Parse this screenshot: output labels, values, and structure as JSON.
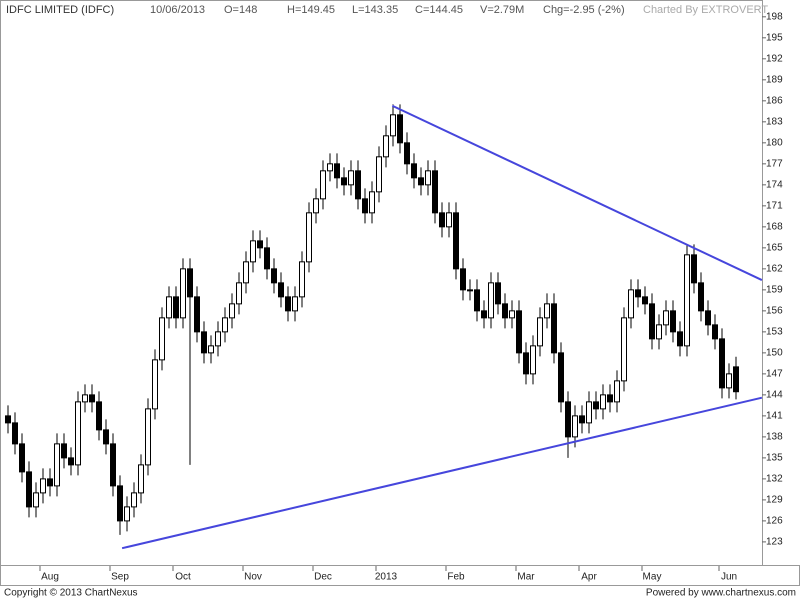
{
  "chart_data": {
    "type": "candlestick",
    "title": "IDFC LIMITED (IDFC)",
    "header": [
      "10/06/2013",
      "O=148",
      "H=149.45",
      "L=143.35",
      "C=144.45",
      "V=2.79M",
      "Chg=-2.95 (-2%)"
    ],
    "credit": "Charted By EXTROVERT",
    "footer_left": "Copyright © 2013 ChartNexus",
    "footer_right": "Powered by www.chartnexus.com",
    "categories": [
      null,
      null,
      null,
      null,
      null,
      "Aug",
      null,
      null,
      null,
      null,
      null,
      null,
      null,
      null,
      null,
      "Sep",
      null,
      null,
      null,
      null,
      null,
      null,
      null,
      null,
      "Oct",
      null,
      null,
      null,
      null,
      null,
      null,
      null,
      null,
      null,
      "Nov",
      null,
      null,
      null,
      null,
      null,
      null,
      null,
      null,
      null,
      "Dec",
      null,
      null,
      null,
      null,
      null,
      null,
      null,
      null,
      "2013",
      null,
      null,
      null,
      null,
      null,
      null,
      null,
      null,
      null,
      "Feb",
      null,
      null,
      null,
      null,
      null,
      null,
      null,
      null,
      null,
      "Mar",
      null,
      null,
      null,
      null,
      null,
      null,
      null,
      null,
      "Apr",
      null,
      null,
      null,
      null,
      null,
      null,
      null,
      null,
      "May",
      null,
      null,
      null,
      null,
      null,
      null,
      null,
      null,
      null,
      null,
      "Jun",
      null,
      null
    ],
    "open": [
      141,
      140,
      137,
      133,
      128,
      130,
      132,
      131,
      137,
      135,
      134,
      143,
      144,
      143,
      139,
      137,
      131,
      126,
      128,
      130,
      134,
      142,
      149,
      155,
      158,
      155,
      162,
      158,
      153,
      150,
      151,
      153,
      155,
      157,
      160,
      163,
      166,
      165,
      162,
      160,
      158,
      156,
      158,
      163,
      170,
      172,
      176,
      177,
      175,
      174,
      176,
      172,
      170,
      173,
      178,
      181,
      184,
      180,
      177,
      175,
      174,
      176,
      170,
      168,
      170,
      162,
      159,
      159,
      156,
      155,
      160,
      157,
      155,
      156,
      150,
      147,
      151,
      155,
      157,
      150,
      143,
      138,
      141,
      140,
      143,
      142,
      144,
      143,
      146,
      155,
      159,
      158,
      157,
      152,
      154,
      156,
      153,
      151,
      164,
      160,
      156,
      154,
      152,
      145,
      148
    ],
    "high": [
      142.5,
      141.5,
      138.5,
      134.5,
      131.5,
      133.5,
      133.5,
      138.5,
      138.5,
      136.5,
      144.5,
      145.5,
      145.5,
      144.5,
      140.5,
      138.5,
      132.5,
      129.5,
      131.5,
      135.5,
      143.5,
      150.5,
      156.5,
      159.5,
      159.5,
      163.5,
      163.5,
      159.5,
      154.5,
      152.5,
      154.5,
      156.5,
      158.5,
      161.5,
      164.5,
      167.5,
      167.5,
      166.5,
      163.5,
      161.5,
      159.5,
      159.5,
      164.5,
      171.5,
      173.5,
      177.5,
      178.5,
      178.5,
      176.5,
      177.5,
      177.5,
      173.5,
      174.5,
      179.5,
      182.5,
      185.5,
      185.5,
      181.5,
      178.5,
      176.5,
      177.5,
      177.5,
      171.5,
      171.5,
      171.5,
      163.5,
      160.5,
      160.5,
      157.5,
      161.5,
      161.5,
      158.5,
      157.5,
      157.5,
      151.5,
      152.5,
      156.5,
      158.5,
      158.5,
      151.5,
      144.5,
      142.5,
      142.5,
      144.5,
      144.5,
      145.5,
      145.5,
      147.5,
      156.5,
      160.5,
      160.5,
      159.5,
      158.5,
      155.5,
      157.5,
      157.5,
      154.5,
      165.5,
      165.5,
      161.5,
      157.5,
      155.5,
      153.5,
      148.5,
      149.45
    ],
    "low": [
      138.5,
      135.5,
      131.5,
      126.5,
      126.5,
      128.5,
      129.5,
      129.5,
      133.5,
      132.5,
      132.5,
      141.5,
      141.5,
      137.5,
      135.5,
      129.5,
      124,
      124.5,
      126.5,
      128.5,
      132.5,
      140.5,
      147.5,
      153.5,
      153.5,
      153.5,
      134,
      151.5,
      148.5,
      148.5,
      149.5,
      151.5,
      153.5,
      155.5,
      158.5,
      161.5,
      163.5,
      160.5,
      158.5,
      156.5,
      154.5,
      154.5,
      156.5,
      161.5,
      168.5,
      170.5,
      174.5,
      173.5,
      172.5,
      172.5,
      170.5,
      168.5,
      168.5,
      171.5,
      176.5,
      179.5,
      178.5,
      175.5,
      173.5,
      172.5,
      172.5,
      168.5,
      166.5,
      166.5,
      160.5,
      157.5,
      157.5,
      154.5,
      153.5,
      153.5,
      155.5,
      153.5,
      153.5,
      148.5,
      145.5,
      145.5,
      149.5,
      153.5,
      148.5,
      141.5,
      135,
      136.5,
      138.5,
      138.5,
      140.5,
      140.5,
      141.5,
      141.5,
      144.5,
      153.5,
      156.5,
      155.5,
      150.5,
      150.5,
      152.5,
      151.5,
      149.5,
      149.5,
      158.5,
      154.5,
      152.5,
      150.5,
      143.5,
      143.5,
      143.35
    ],
    "close": [
      140,
      137,
      133,
      128,
      130,
      132,
      131,
      137,
      135,
      134,
      143,
      144,
      143,
      139,
      137,
      131,
      126,
      128,
      130,
      134,
      142,
      149,
      155,
      158,
      155,
      162,
      158,
      153,
      150,
      151,
      153,
      155,
      157,
      160,
      163,
      166,
      165,
      162,
      160,
      158,
      156,
      158,
      163,
      170,
      172,
      176,
      177,
      175,
      174,
      176,
      172,
      170,
      173,
      178,
      181,
      184,
      180,
      177,
      175,
      174,
      176,
      170,
      168,
      170,
      162,
      159,
      159,
      156,
      155,
      160,
      157,
      155,
      156,
      150,
      147,
      151,
      155,
      157,
      150,
      143,
      138,
      141,
      140,
      143,
      142,
      144,
      143,
      146,
      155,
      159,
      158,
      157,
      152,
      154,
      156,
      153,
      151,
      164,
      160,
      156,
      154,
      152,
      145,
      147,
      144.45
    ],
    "trend_lines": [
      {
        "x": [
          54.9,
          107.7
        ],
        "y": [
          185.3,
          160.4
        ],
        "color": "#4646dc"
      },
      {
        "x": [
          16.3,
          107.7
        ],
        "y": [
          122.1,
          143.6
        ],
        "color": "#4646dc"
      }
    ],
    "ylim": [
      119.7,
      200.4
    ],
    "yticks": [
      123,
      126,
      129,
      132,
      135,
      138,
      141,
      144,
      147,
      150,
      153,
      156,
      159,
      162,
      165,
      168,
      171,
      174,
      177,
      180,
      183,
      186,
      189,
      192,
      195,
      198
    ],
    "up_color": "#ffffff",
    "down_color": "#000000"
  }
}
